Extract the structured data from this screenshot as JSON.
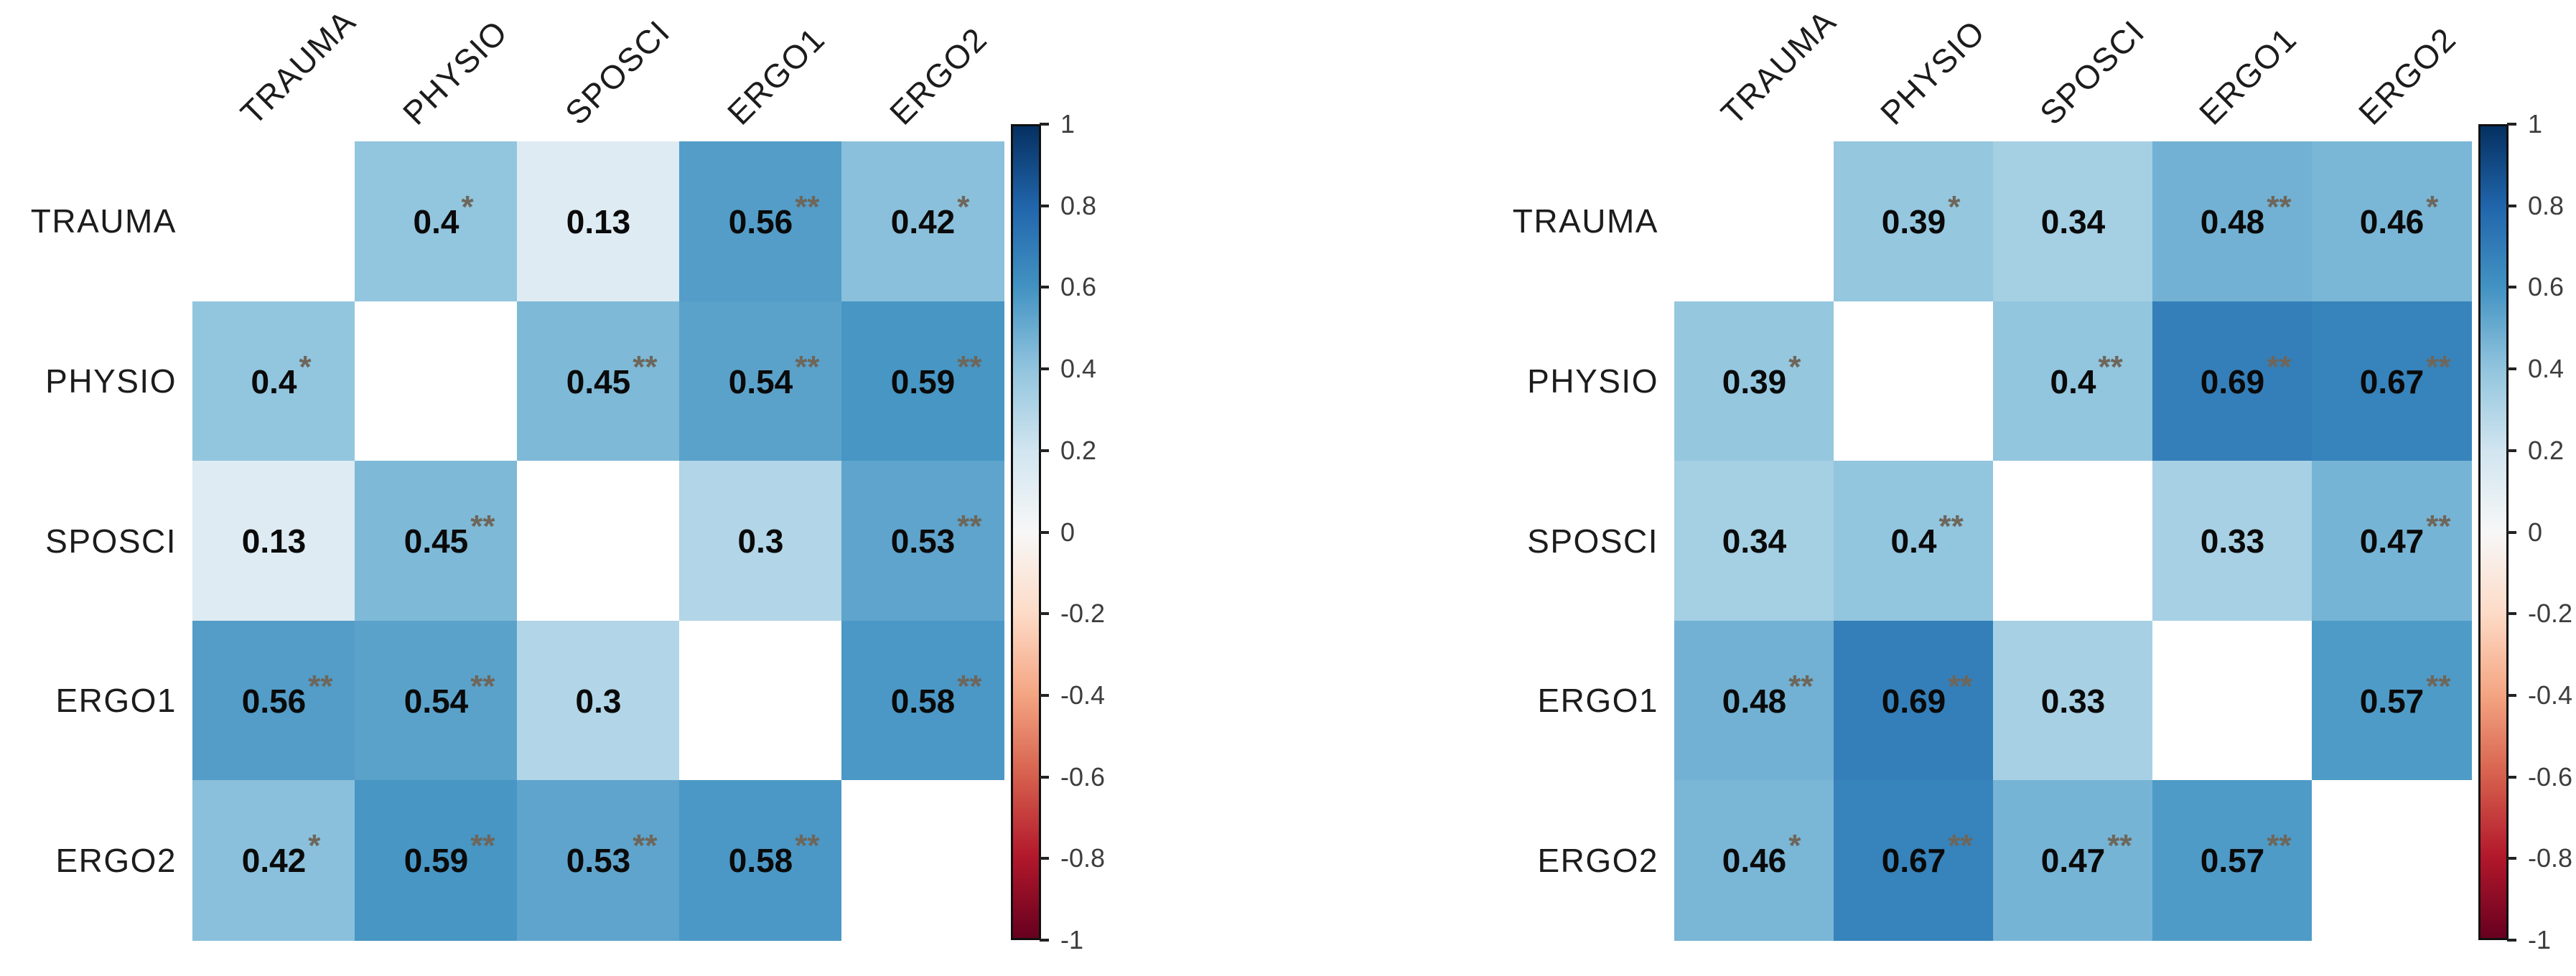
{
  "figure": {
    "background": "#ffffff",
    "panel_count": 2
  },
  "chart_data": [
    {
      "type": "heatmap",
      "name": "correlation-matrix-left",
      "title": "",
      "variables": [
        "TRAUMA",
        "PHYSIO",
        "SPOSCI",
        "ERGO1",
        "ERGO2"
      ],
      "row_labels": [
        "TRAUMA",
        "PHYSIO",
        "SPOSCI",
        "ERGO1",
        "ERGO2"
      ],
      "col_labels": [
        "TRAUMA",
        "PHYSIO",
        "SPOSCI",
        "ERGO1",
        "ERGO2"
      ],
      "diagonal": "blank",
      "matrix": [
        [
          null,
          {
            "value": "0.4",
            "stars": "*"
          },
          {
            "value": "0.13",
            "stars": ""
          },
          {
            "value": "0.56",
            "stars": "**"
          },
          {
            "value": "0.42",
            "stars": "*"
          }
        ],
        [
          {
            "value": "0.4",
            "stars": "*"
          },
          null,
          {
            "value": "0.45",
            "stars": "**"
          },
          {
            "value": "0.54",
            "stars": "**"
          },
          {
            "value": "0.59",
            "stars": "**"
          }
        ],
        [
          {
            "value": "0.13",
            "stars": ""
          },
          {
            "value": "0.45",
            "stars": "**"
          },
          null,
          {
            "value": "0.3",
            "stars": ""
          },
          {
            "value": "0.53",
            "stars": "**"
          }
        ],
        [
          {
            "value": "0.56",
            "stars": "**"
          },
          {
            "value": "0.54",
            "stars": "**"
          },
          {
            "value": "0.3",
            "stars": ""
          },
          null,
          {
            "value": "0.58",
            "stars": "**"
          }
        ],
        [
          {
            "value": "0.42",
            "stars": "*"
          },
          {
            "value": "0.59",
            "stars": "**"
          },
          {
            "value": "0.53",
            "stars": "**"
          },
          {
            "value": "0.58",
            "stars": "**"
          },
          null
        ]
      ],
      "colorbar": {
        "orientation": "vertical",
        "position": "right",
        "range": [
          -1,
          1
        ],
        "tick_labels": [
          "1",
          "0.8",
          "0.6",
          "0.4",
          "0.2",
          "0",
          "-0.2",
          "-0.4",
          "-0.6",
          "-0.8",
          "-1"
        ]
      }
    },
    {
      "type": "heatmap",
      "name": "correlation-matrix-right",
      "title": "",
      "variables": [
        "TRAUMA",
        "PHYSIO",
        "SPOSCI",
        "ERGO1",
        "ERGO2"
      ],
      "row_labels": [
        "TRAUMA",
        "PHYSIO",
        "SPOSCI",
        "ERGO1",
        "ERGO2"
      ],
      "col_labels": [
        "TRAUMA",
        "PHYSIO",
        "SPOSCI",
        "ERGO1",
        "ERGO2"
      ],
      "diagonal": "blank",
      "matrix": [
        [
          null,
          {
            "value": "0.39",
            "stars": "*"
          },
          {
            "value": "0.34",
            "stars": ""
          },
          {
            "value": "0.48",
            "stars": "**"
          },
          {
            "value": "0.46",
            "stars": "*"
          }
        ],
        [
          {
            "value": "0.39",
            "stars": "*"
          },
          null,
          {
            "value": "0.4",
            "stars": "**"
          },
          {
            "value": "0.69",
            "stars": "**"
          },
          {
            "value": "0.67",
            "stars": "**"
          }
        ],
        [
          {
            "value": "0.34",
            "stars": ""
          },
          {
            "value": "0.4",
            "stars": "**"
          },
          null,
          {
            "value": "0.33",
            "stars": ""
          },
          {
            "value": "0.47",
            "stars": "**"
          }
        ],
        [
          {
            "value": "0.48",
            "stars": "**"
          },
          {
            "value": "0.69",
            "stars": "**"
          },
          {
            "value": "0.33",
            "stars": ""
          },
          null,
          {
            "value": "0.57",
            "stars": "**"
          }
        ],
        [
          {
            "value": "0.46",
            "stars": "*"
          },
          {
            "value": "0.67",
            "stars": "**"
          },
          {
            "value": "0.47",
            "stars": "**"
          },
          {
            "value": "0.57",
            "stars": "**"
          },
          null
        ]
      ],
      "colorbar": {
        "orientation": "vertical",
        "position": "right",
        "range": [
          -1,
          1
        ],
        "tick_labels": [
          "1",
          "0.8",
          "0.6",
          "0.4",
          "0.2",
          "0",
          "-0.2",
          "-0.4",
          "-0.6",
          "-0.8",
          "-1"
        ]
      }
    }
  ],
  "colors": {
    "colormap_stops_top_to_bottom": [
      "#053061",
      "#2166ac",
      "#4393c3",
      "#92c5de",
      "#d1e5f0",
      "#f7f7f7",
      "#fddbc7",
      "#f4a582",
      "#d6604d",
      "#b2182b",
      "#67001f"
    ],
    "significance_star": "#6e665a",
    "value_text": "#0a0a0a",
    "axis_label_text": "#1c1c1c",
    "tick_label_text": "#3d3d3d",
    "colorbar_border": "#101010",
    "diagonal_cell": "#ffffff",
    "background": "#ffffff"
  }
}
